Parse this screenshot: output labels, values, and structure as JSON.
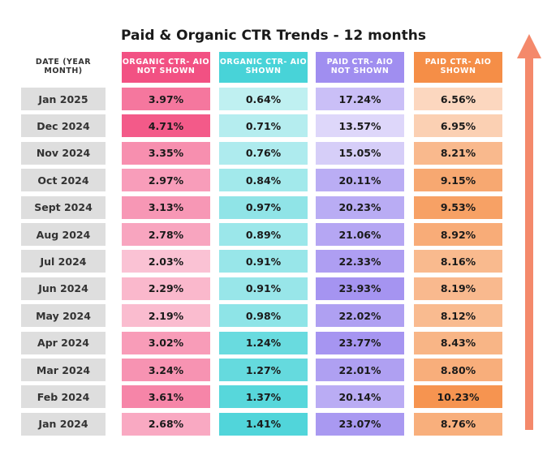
{
  "chart_data": {
    "type": "table",
    "title": "Paid & Organic CTR Trends - 12 months",
    "columns": [
      "DATE (YEAR MONTH)",
      "ORGANIC CTR- AIO NOT SHOWN",
      "ORGANIC CTR- AIO SHOWN",
      "PAID CTR- AIO NOT SHOWN",
      "PAID CTR- AIO SHOWN"
    ],
    "rows": [
      [
        "Jan 2025",
        "3.97%",
        "0.64%",
        "17.24%",
        "6.56%"
      ],
      [
        "Dec 2024",
        "4.71%",
        "0.71%",
        "13.57%",
        "6.95%"
      ],
      [
        "Nov 2024",
        "3.35%",
        "0.76%",
        "15.05%",
        "8.21%"
      ],
      [
        "Oct 2024",
        "2.97%",
        "0.84%",
        "20.11%",
        "9.15%"
      ],
      [
        "Sept 2024",
        "3.13%",
        "0.97%",
        "20.23%",
        "9.53%"
      ],
      [
        "Aug 2024",
        "2.78%",
        "0.89%",
        "21.06%",
        "8.92%"
      ],
      [
        "Jul 2024",
        "2.03%",
        "0.91%",
        "22.33%",
        "8.16%"
      ],
      [
        "Jun 2024",
        "2.29%",
        "0.91%",
        "23.93%",
        "8.19%"
      ],
      [
        "May 2024",
        "2.19%",
        "0.98%",
        "22.02%",
        "8.12%"
      ],
      [
        "Apr 2024",
        "3.02%",
        "1.24%",
        "23.77%",
        "8.43%"
      ],
      [
        "Mar 2024",
        "3.24%",
        "1.27%",
        "22.01%",
        "8.80%"
      ],
      [
        "Feb 2024",
        "3.61%",
        "1.37%",
        "20.14%",
        "10.23%"
      ],
      [
        "Jan 2024",
        "2.68%",
        "1.41%",
        "23.07%",
        "8.76%"
      ]
    ],
    "column_colors": [
      "#dedede",
      "#f25183",
      "#48d3d8",
      "#a08ef0",
      "#f58e47"
    ],
    "arrow_color": "#f4896b"
  }
}
